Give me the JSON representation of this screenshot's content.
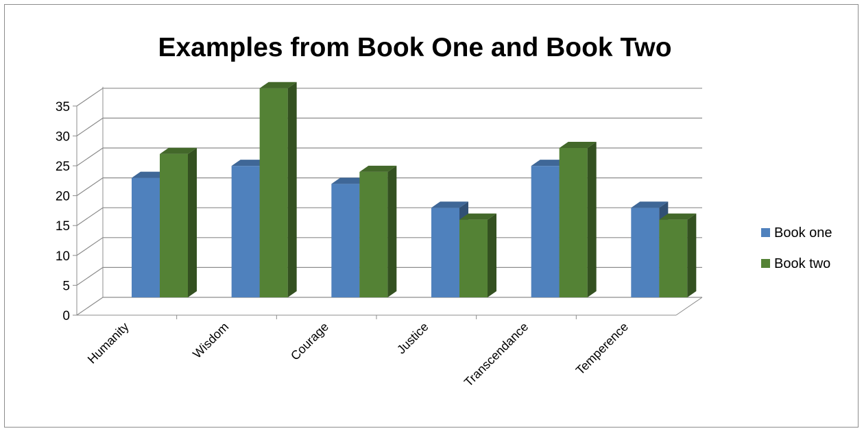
{
  "chart_data": {
    "type": "bar",
    "title": "Examples from Book One and Book Two",
    "categories": [
      "Humanity",
      "Wisdom",
      "Courage",
      "Justice",
      "Transcendance",
      "Temperence"
    ],
    "series": [
      {
        "name": "Book one",
        "values": [
          20,
          22,
          19,
          15,
          22,
          15
        ],
        "color": "#4f81bd"
      },
      {
        "name": "Book two",
        "values": [
          24,
          35,
          21,
          13,
          25,
          13
        ],
        "color": "#548235"
      }
    ],
    "ylim": [
      0,
      35
    ],
    "yticks": [
      0,
      5,
      10,
      15,
      20,
      25,
      30,
      35
    ],
    "grid": true,
    "legend": "right",
    "style": "3d-clustered-column"
  }
}
